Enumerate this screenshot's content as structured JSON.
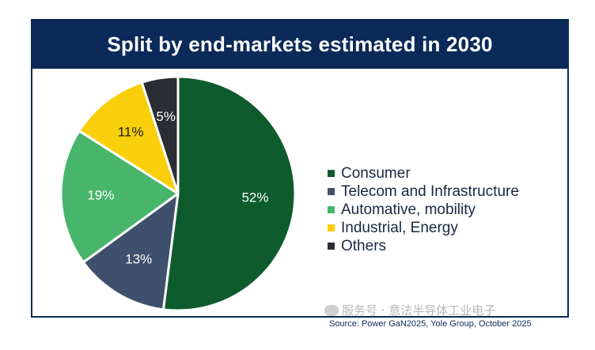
{
  "title": "Split by end-markets estimated in 2030",
  "source": "Source: Power GaN2025, Yole Group, October 2025",
  "watermark": "服务号 · 意法半导体工业电子",
  "chart_data": {
    "type": "pie",
    "title": "Split by end-markets estimated in 2030",
    "slices": [
      {
        "label": "Consumer",
        "value": 52,
        "display": "52%",
        "color": "#0e5c2d",
        "label_color": "#ffffff"
      },
      {
        "label": "Telecom and Infrastructure",
        "value": 13,
        "display": "13%",
        "color": "#3e506c",
        "label_color": "#ffffff"
      },
      {
        "label": "Automative, mobility",
        "value": 19,
        "display": "19%",
        "color": "#47b56a",
        "label_color": "#ffffff"
      },
      {
        "label": "Industrial, Energy",
        "value": 11,
        "display": "11%",
        "color": "#f9cf0b",
        "label_color": "#1a1a1a"
      },
      {
        "label": "Others",
        "value": 5,
        "display": "5%",
        "color": "#2a2d33",
        "label_color": "#ffffff"
      }
    ],
    "start": "12 o'clock",
    "direction": "clockwise",
    "legend_position": "right"
  }
}
